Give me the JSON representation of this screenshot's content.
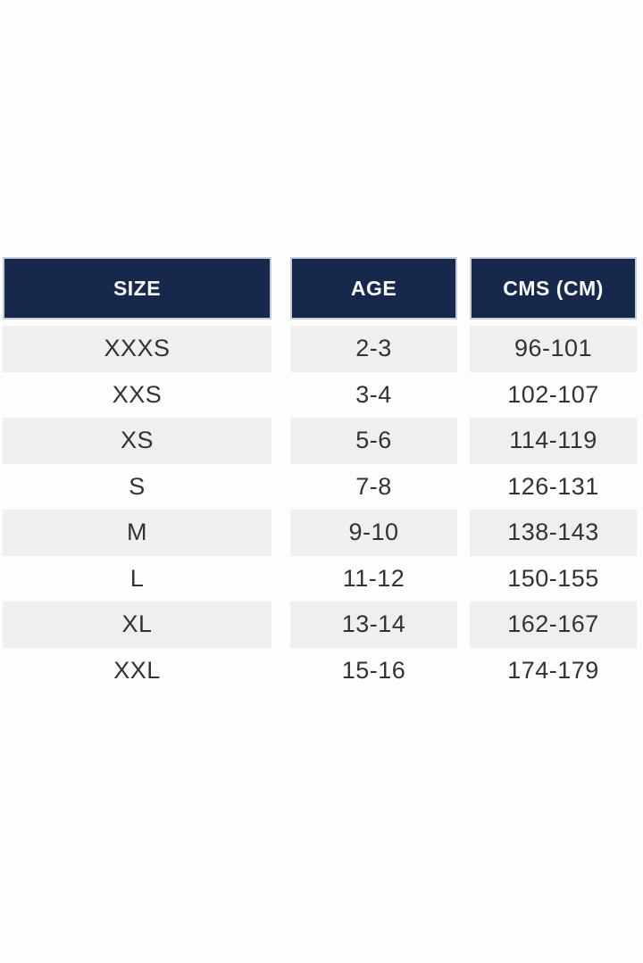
{
  "colors": {
    "header_bg": "#16294d",
    "header_text": "#f8f8f8",
    "header_border": "#c6ccd7",
    "row_alt_bg": "#efefef",
    "row_text": "#333333",
    "page_bg": "#fdfdfd"
  },
  "table": {
    "columns": [
      {
        "key": "size",
        "label": "SIZE"
      },
      {
        "key": "age",
        "label": "AGE"
      },
      {
        "key": "cms",
        "label": "CMS (CM)"
      }
    ],
    "rows": [
      {
        "size": "XXXS",
        "age": "2-3",
        "cms": "96-101"
      },
      {
        "size": "XXS",
        "age": "3-4",
        "cms": "102-107"
      },
      {
        "size": "XS",
        "age": "5-6",
        "cms": "114-119"
      },
      {
        "size": "S",
        "age": "7-8",
        "cms": "126-131"
      },
      {
        "size": "M",
        "age": "9-10",
        "cms": "138-143"
      },
      {
        "size": "L",
        "age": "11-12",
        "cms": "150-155"
      },
      {
        "size": "XL",
        "age": "13-14",
        "cms": "162-167"
      },
      {
        "size": "XXL",
        "age": "15-16",
        "cms": "174-179"
      }
    ]
  },
  "chart_data": {
    "type": "table",
    "columns": [
      "SIZE",
      "AGE",
      "CMS (CM)"
    ],
    "rows": [
      [
        "XXXS",
        "2-3",
        "96-101"
      ],
      [
        "XXS",
        "3-4",
        "102-107"
      ],
      [
        "XS",
        "5-6",
        "114-119"
      ],
      [
        "S",
        "7-8",
        "126-131"
      ],
      [
        "M",
        "9-10",
        "138-143"
      ],
      [
        "L",
        "11-12",
        "150-155"
      ],
      [
        "XL",
        "13-14",
        "162-167"
      ],
      [
        "XXL",
        "15-16",
        "174-179"
      ]
    ],
    "layout": {
      "striped_rows": true,
      "stripe_pattern": "odd rows shaded light gray",
      "header_style": "dark navy background, bold white uppercase text",
      "column_gaps": true
    }
  }
}
